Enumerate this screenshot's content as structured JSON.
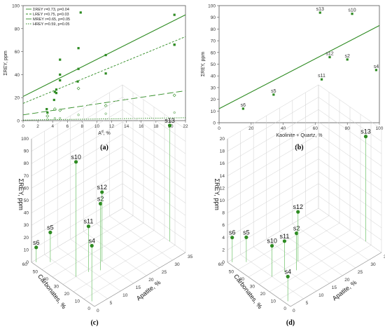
{
  "colors": {
    "series": "#2e8b22",
    "axis": "#555555",
    "grid": "#cfcfcf"
  },
  "chart_data": [
    {
      "panel": "(a)",
      "type": "scatter",
      "xlabel": "A",
      "xlabel_sup": "d",
      "xlabel_unit": ", %",
      "ylabel": "ΣREY, ppm",
      "xlim": [
        0,
        22
      ],
      "ylim": [
        0,
        100
      ],
      "xticks": [
        0,
        2,
        4,
        6,
        8,
        10,
        12,
        14,
        16,
        18,
        20,
        22
      ],
      "yticks": [
        0,
        20,
        40,
        60,
        80,
        100
      ],
      "legend_position": "top-left",
      "series": [
        {
          "name": "ΣREY",
          "stat": "r=0.73, p=0.04",
          "marker": "square",
          "points": [
            [
              3.2,
              10
            ],
            [
              4.3,
              25
            ],
            [
              4.5,
              27
            ],
            [
              5.0,
              40
            ],
            [
              5.0,
              53
            ],
            [
              7.5,
              63
            ],
            [
              7.5,
              45
            ],
            [
              7.8,
              94
            ],
            [
              11.2,
              57
            ],
            [
              11.2,
              41
            ],
            [
              20.5,
              92
            ],
            [
              20.5,
              66
            ]
          ],
          "line": [
            21,
            92
          ],
          "dash": ""
        },
        {
          "name": "LREY",
          "stat": "r=0.75, p=0.03",
          "marker": "square",
          "points": [
            [
              3.3,
              7
            ],
            [
              4.2,
              18
            ],
            [
              4.5,
              24
            ],
            [
              5.0,
              35
            ],
            [
              7.4,
              34
            ],
            [
              20.5,
              66
            ]
          ],
          "line": [
            15,
            73
          ],
          "dash": "3,2"
        },
        {
          "name": "MREY",
          "stat": "r=0.65, p=0.05",
          "marker": "diamond",
          "points": [
            [
              3.3,
              4
            ],
            [
              4.3,
              10
            ],
            [
              5.0,
              9
            ],
            [
              7.5,
              28
            ],
            [
              11.2,
              13
            ],
            [
              20.5,
              22
            ]
          ],
          "line": [
            5,
            26
          ],
          "dash": "9,4"
        },
        {
          "name": "HREY",
          "stat": "r=0.59, p=0.05",
          "marker": "circle",
          "points": [
            [
              3.3,
              1
            ],
            [
              4.3,
              2
            ],
            [
              5.0,
              2
            ],
            [
              7.5,
              5
            ],
            [
              11.2,
              6
            ],
            [
              20.5,
              7
            ]
          ],
          "line": [
            0.5,
            2.5
          ],
          "dash": "1.5,1.5"
        }
      ]
    },
    {
      "panel": "(b)",
      "type": "scatter",
      "xlabel": "Kaolinite + Quartz, %",
      "ylabel": "ΣREY, ppm",
      "xlim": [
        0,
        100
      ],
      "ylim": [
        0,
        100
      ],
      "xticks": [
        0,
        20,
        40,
        60,
        80,
        100
      ],
      "yticks": [
        0,
        10,
        20,
        30,
        40,
        50,
        60,
        70,
        80,
        90,
        100
      ],
      "points": [
        {
          "label": "s6",
          "x": 15,
          "y": 12
        },
        {
          "label": "s5",
          "x": 34,
          "y": 24
        },
        {
          "label": "s11",
          "x": 64,
          "y": 37
        },
        {
          "label": "s12",
          "x": 69,
          "y": 56
        },
        {
          "label": "s2",
          "x": 80,
          "y": 54
        },
        {
          "label": "s4",
          "x": 98,
          "y": 45
        },
        {
          "label": "s13",
          "x": 63,
          "y": 94
        },
        {
          "label": "s10",
          "x": 83,
          "y": 93
        }
      ],
      "fit_line": [
        12,
        83
      ]
    },
    {
      "panel": "(c)",
      "type": "scatter3d",
      "zlabel": "ΣREY, ppm",
      "xlabel": "Carbonates, %",
      "ylabel": "Apatite, %",
      "zlim": [
        0,
        100
      ],
      "zticks": [
        0,
        10,
        20,
        30,
        40,
        50,
        60,
        70,
        80,
        90,
        100
      ],
      "xticks": [
        0,
        10,
        20,
        30,
        40,
        50,
        60
      ],
      "yticks": [
        0,
        5,
        10,
        15,
        20,
        25,
        30,
        35
      ],
      "points": [
        {
          "label": "s6",
          "carb": 58,
          "apat": 1,
          "z": 12
        },
        {
          "label": "s5",
          "carb": 52,
          "apat": 4,
          "z": 24
        },
        {
          "label": "s4",
          "carb": 5,
          "apat": 1,
          "z": 45
        },
        {
          "label": "s10",
          "carb": 30,
          "apat": 5,
          "z": 93
        },
        {
          "label": "s11",
          "carb": 28,
          "apat": 9,
          "z": 37
        },
        {
          "label": "s2",
          "carb": 24,
          "apat": 12,
          "z": 54
        },
        {
          "label": "s12",
          "carb": 30,
          "apat": 15,
          "z": 56
        },
        {
          "label": "s13",
          "carb": 15,
          "apat": 35,
          "z": 94
        }
      ]
    },
    {
      "panel": "(d)",
      "type": "scatter3d",
      "zlabel": "ΣREY, ppm",
      "xlabel": "Carbonates, %",
      "ylabel": "Apatite, %",
      "zlim": [
        0,
        20
      ],
      "zticks": [
        0,
        2,
        4,
        6,
        8,
        10,
        12,
        14,
        16,
        18,
        20
      ],
      "xticks": [
        0,
        10,
        20,
        30,
        40,
        50,
        60
      ],
      "yticks": [
        0,
        5,
        10,
        15,
        20,
        25,
        30,
        35
      ],
      "points": [
        {
          "label": "s6",
          "carb": 58,
          "apat": 1,
          "z": 4
        },
        {
          "label": "s5",
          "carb": 52,
          "apat": 4,
          "z": 4
        },
        {
          "label": "s4",
          "carb": 5,
          "apat": 1,
          "z": 4
        },
        {
          "label": "s10",
          "carb": 30,
          "apat": 5,
          "z": 5
        },
        {
          "label": "s11",
          "carb": 28,
          "apat": 9,
          "z": 5
        },
        {
          "label": "s2",
          "carb": 24,
          "apat": 12,
          "z": 6
        },
        {
          "label": "s12",
          "carb": 30,
          "apat": 15,
          "z": 8
        },
        {
          "label": "s13",
          "carb": 15,
          "apat": 35,
          "z": 17
        }
      ]
    }
  ]
}
